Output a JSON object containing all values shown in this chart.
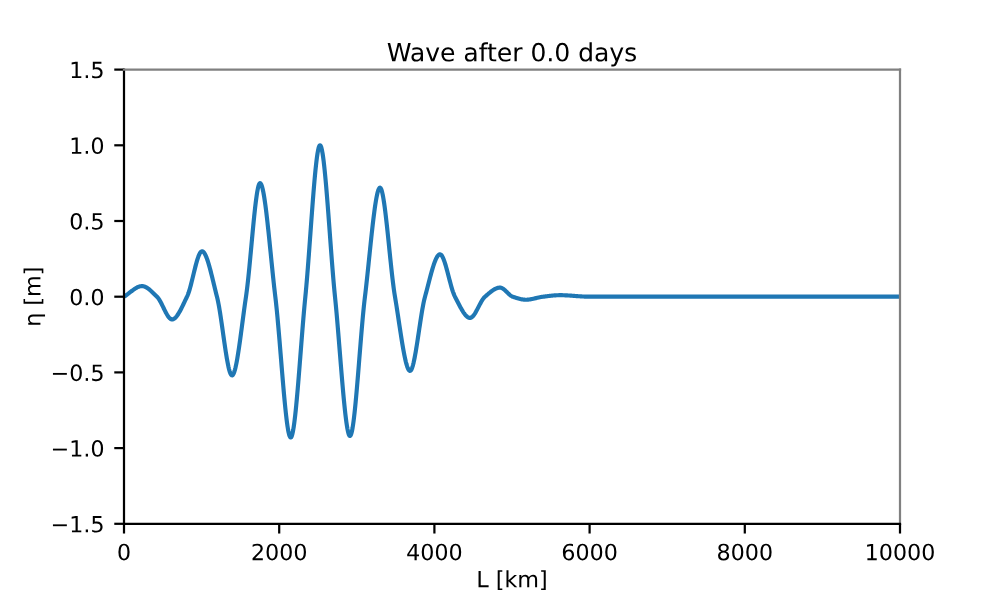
{
  "chart_data": {
    "type": "line",
    "title": "Wave after 0.0 days",
    "xlabel": "L [km]",
    "ylabel": "η [m]",
    "series": [
      {
        "color": "#1f77b4",
        "x": [
          0,
          232,
          425,
          619,
          812,
          1005,
          1198,
          1392,
          1572,
          1753,
          1950,
          2148,
          2337,
          2526,
          2719,
          2912,
          3105,
          3299,
          3492,
          3686,
          3879,
          4072,
          4265,
          4459,
          4652,
          4845,
          5010,
          5180,
          5400,
          5619,
          6000,
          10000
        ],
        "values": [
          0.0,
          0.07,
          0,
          -0.15,
          0,
          0.3,
          0,
          -0.52,
          0,
          0.75,
          0,
          -0.93,
          0,
          1.0,
          0,
          -0.92,
          0,
          0.72,
          0,
          -0.49,
          0,
          0.28,
          0,
          -0.14,
          0,
          0.06,
          0,
          -0.02,
          0,
          0.01,
          0,
          0
        ]
      }
    ],
    "xlim": [
      0,
      10000
    ],
    "xticks": [
      0,
      2000,
      4000,
      6000,
      8000,
      10000
    ],
    "ylim": [
      -1.5,
      1.5
    ],
    "yticks": [
      {
        "value": -1.5,
        "label": "−1.5"
      },
      {
        "value": -1.0,
        "label": "−1.0"
      },
      {
        "value": -0.5,
        "label": "−0.5"
      },
      {
        "value": 0.0,
        "label": "0.0"
      },
      {
        "value": 0.5,
        "label": "0.5"
      },
      {
        "value": 1.0,
        "label": "1.0"
      },
      {
        "value": 1.5,
        "label": "1.5"
      }
    ],
    "grid": false,
    "marker": "none",
    "line_style": "solid"
  }
}
